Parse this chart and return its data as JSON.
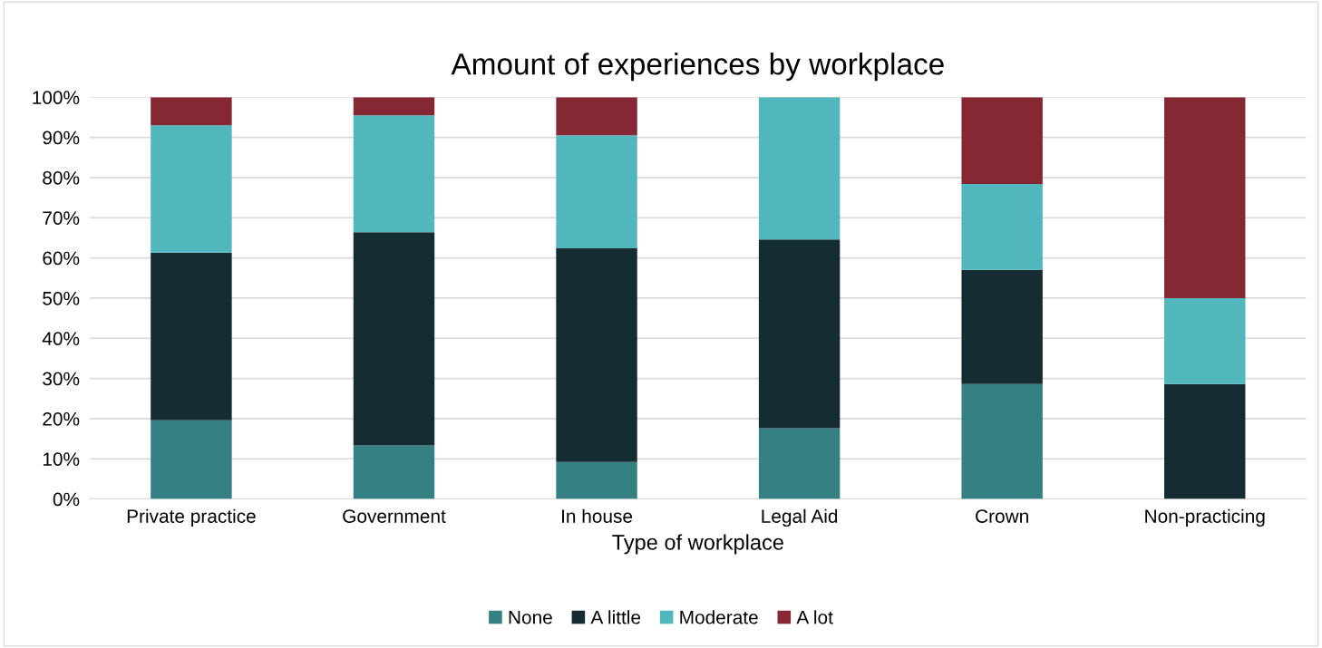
{
  "chart_data": {
    "type": "bar",
    "title": "Amount of experiences by workplace",
    "xlabel": "Type of workplace",
    "categories": [
      "Private practice",
      "Government",
      "In house",
      "Legal Aid",
      "Crown",
      "Non-practicing"
    ],
    "stacked": true,
    "series": [
      {
        "name": "None",
        "color": "#358083",
        "values": [
          19.6,
          13.3,
          9.2,
          17.6,
          28.6,
          0
        ]
      },
      {
        "name": "A little",
        "color": "#152c33",
        "values": [
          41.7,
          53.1,
          53.2,
          47.0,
          28.4,
          28.6
        ]
      },
      {
        "name": "Moderate",
        "color": "#52b7bd",
        "values": [
          31.7,
          29.1,
          28.1,
          35.4,
          21.4,
          21.4
        ]
      },
      {
        "name": "A lot",
        "color": "#862834",
        "values": [
          7.0,
          4.5,
          9.5,
          0,
          21.6,
          50.0
        ]
      }
    ],
    "ylim": [
      0,
      100
    ],
    "yticks": [
      {
        "value": 0,
        "label": "0%"
      },
      {
        "value": 10,
        "label": "10%"
      },
      {
        "value": 20,
        "label": "20%"
      },
      {
        "value": 30,
        "label": "30%"
      },
      {
        "value": 40,
        "label": "40%"
      },
      {
        "value": 50,
        "label": "50%"
      },
      {
        "value": 60,
        "label": "60%"
      },
      {
        "value": 70,
        "label": "70%"
      },
      {
        "value": 80,
        "label": "80%"
      },
      {
        "value": 90,
        "label": "90%"
      },
      {
        "value": 100,
        "label": "100%"
      }
    ],
    "grid": "y",
    "legend": "bottom"
  }
}
